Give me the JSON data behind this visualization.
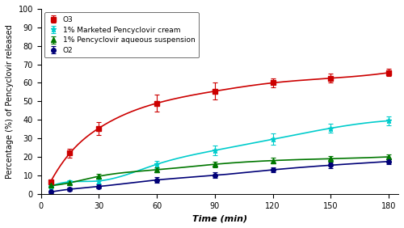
{
  "time": [
    5,
    15,
    30,
    60,
    90,
    120,
    150,
    180
  ],
  "O3": [
    6.5,
    22.0,
    35.5,
    49.0,
    55.5,
    60.0,
    62.5,
    65.5
  ],
  "O3_err": [
    1.0,
    2.5,
    3.5,
    4.5,
    4.5,
    2.5,
    2.5,
    2.0
  ],
  "marketed": [
    4.0,
    6.5,
    7.0,
    16.0,
    23.5,
    29.5,
    35.5,
    39.5
  ],
  "marketed_err": [
    0.8,
    1.0,
    1.5,
    2.0,
    2.5,
    3.0,
    2.5,
    2.5
  ],
  "suspension": [
    4.5,
    6.0,
    9.5,
    13.0,
    16.0,
    18.0,
    19.0,
    20.0
  ],
  "suspension_err": [
    0.8,
    1.0,
    1.5,
    1.5,
    1.5,
    1.5,
    1.5,
    1.5
  ],
  "O2": [
    1.0,
    2.5,
    4.0,
    7.5,
    10.0,
    13.0,
    15.5,
    17.5
  ],
  "O2_err": [
    0.5,
    0.8,
    1.0,
    1.5,
    1.5,
    1.5,
    1.5,
    1.5
  ],
  "color_O3": "#cc0000",
  "color_marketed": "#00cccc",
  "color_suspension": "#007700",
  "color_O2": "#000077",
  "xlabel": "Time (min)",
  "ylabel": "Percentage (%) of Pencyclovir released",
  "ylim": [
    0,
    100
  ],
  "xlim": [
    0,
    185
  ],
  "xticks": [
    0,
    30,
    60,
    90,
    120,
    150,
    180
  ],
  "yticks": [
    0,
    10,
    20,
    30,
    40,
    50,
    60,
    70,
    80,
    90,
    100
  ],
  "legend_labels": [
    "O3",
    "1% Marketed Pencyclovir cream",
    "1% Pencyclovir aqueous suspension",
    "O2"
  ]
}
